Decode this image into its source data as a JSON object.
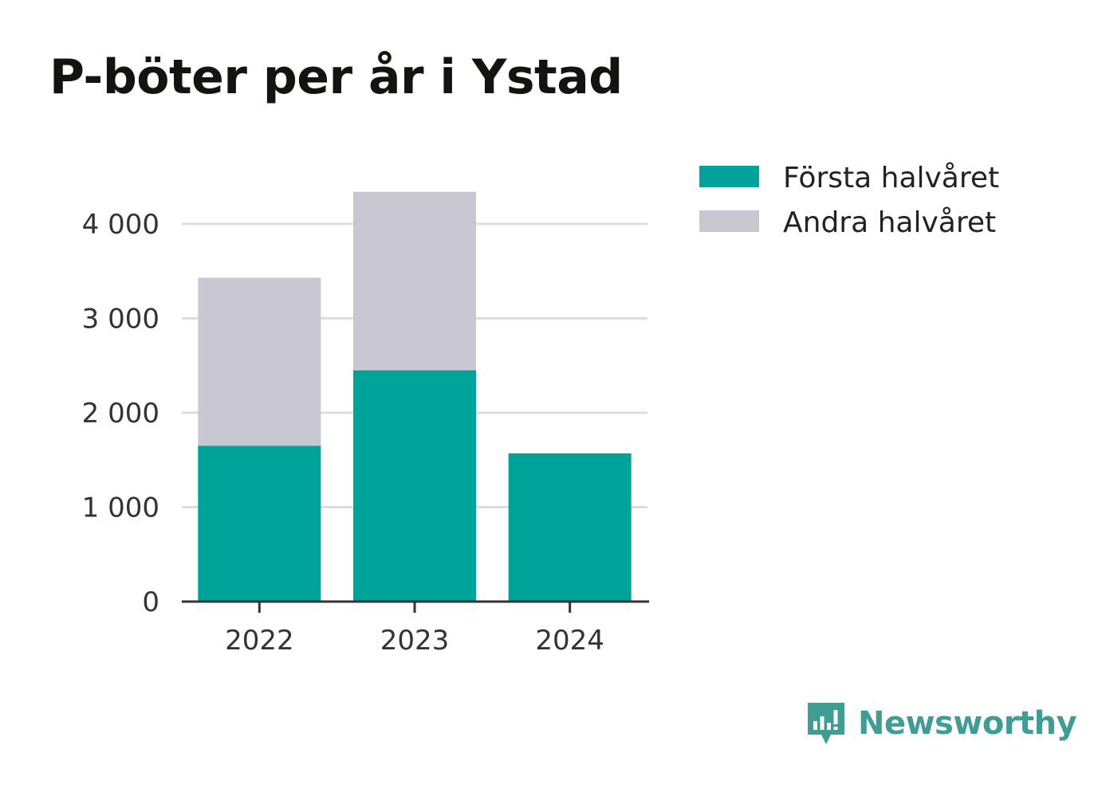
{
  "chart_data": {
    "type": "bar",
    "stacked": true,
    "title": "P-böter per år i Ystad",
    "xlabel": "",
    "ylabel": "",
    "categories": [
      "2022",
      "2023",
      "2024"
    ],
    "series": [
      {
        "name": "Första halvåret",
        "values": [
          1650,
          2450,
          1570
        ],
        "color": "#00a39a"
      },
      {
        "name": "Andra halvåret",
        "values": [
          1780,
          1890,
          0
        ],
        "color": "#c8c7d2"
      }
    ],
    "ylim": [
      0,
      4500
    ],
    "yticks": [
      0,
      1000,
      2000,
      3000,
      4000
    ],
    "ytick_labels": [
      "0",
      "1 000",
      "2 000",
      "3 000",
      "4 000"
    ],
    "grid": true,
    "legend_position": "top-right"
  },
  "brand": {
    "name": "Newsworthy",
    "color": "#3f9d94"
  }
}
